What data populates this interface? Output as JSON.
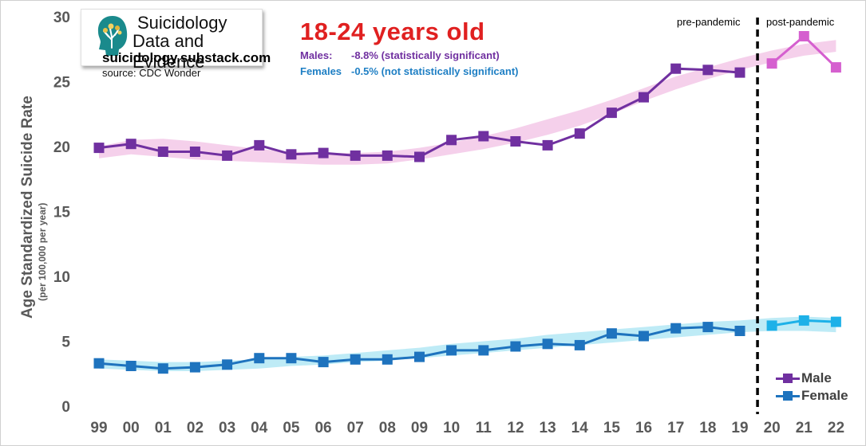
{
  "logo": {
    "line1": "Suicidology",
    "line2": "Data and Evidence",
    "url": "suicidology.substack.com",
    "icon": "head-tree-icon"
  },
  "source": "source: CDC Wonder",
  "title": "18-24 years old",
  "annotations": {
    "males_label": "Males:",
    "males_value": "-8.8% (statistically significant)",
    "females_label": "Females",
    "females_value": "-0.5% (not statistically significant)"
  },
  "regions": {
    "pre": "pre-pandemic",
    "post": "post-pandemic"
  },
  "colors": {
    "male": "#7030a0",
    "male_post": "#d55fcf",
    "male_band": "#f3c8e8",
    "female": "#1e73be",
    "female_post": "#1eb1e8",
    "female_band": "#b3e8f5",
    "axis_text": "#595959"
  },
  "chart_data": {
    "type": "line",
    "title": "18-24 years old",
    "ylabel": "Age Standardized Suicide Rate",
    "ylabel_sub": "(per 100,000 per year)",
    "xlabel": "",
    "categories": [
      "99",
      "00",
      "01",
      "02",
      "03",
      "04",
      "05",
      "06",
      "07",
      "08",
      "09",
      "10",
      "11",
      "12",
      "13",
      "14",
      "15",
      "16",
      "17",
      "18",
      "19",
      "20",
      "21",
      "22"
    ],
    "ylim": [
      0,
      30
    ],
    "yticks": [
      0,
      5,
      10,
      15,
      20,
      25,
      30
    ],
    "pandemic_divider_after": "19",
    "series": [
      {
        "name": "Male",
        "values": [
          19.9,
          20.2,
          19.6,
          19.6,
          19.3,
          20.1,
          19.4,
          19.5,
          19.3,
          19.3,
          19.2,
          20.5,
          20.8,
          20.4,
          20.1,
          21.0,
          22.6,
          23.8,
          26.0,
          25.9,
          25.7,
          26.4,
          28.5,
          26.1
        ],
        "band_lower": [
          19.1,
          19.4,
          19.2,
          19.0,
          18.9,
          18.8,
          18.7,
          18.6,
          18.6,
          18.7,
          19.0,
          19.4,
          19.8,
          20.3,
          20.9,
          21.6,
          22.5,
          23.5,
          24.4,
          25.2,
          25.9,
          26.5,
          27.0,
          27.3
        ],
        "band_upper": [
          20.0,
          20.5,
          20.6,
          20.4,
          20.1,
          19.8,
          19.6,
          19.5,
          19.5,
          19.6,
          19.9,
          20.3,
          20.8,
          21.4,
          22.1,
          22.8,
          23.6,
          24.5,
          25.4,
          26.1,
          26.8,
          27.4,
          27.9,
          28.2
        ]
      },
      {
        "name": "Female",
        "values": [
          3.3,
          3.1,
          2.9,
          3.0,
          3.2,
          3.7,
          3.7,
          3.4,
          3.6,
          3.6,
          3.8,
          4.3,
          4.3,
          4.6,
          4.8,
          4.7,
          5.6,
          5.4,
          6.0,
          6.1,
          5.8,
          6.2,
          6.6,
          6.5
        ],
        "band_lower": [
          2.9,
          2.8,
          2.7,
          2.7,
          2.8,
          2.9,
          3.1,
          3.2,
          3.4,
          3.5,
          3.7,
          3.9,
          4.1,
          4.3,
          4.5,
          4.7,
          4.9,
          5.1,
          5.3,
          5.5,
          5.7,
          5.8,
          5.8,
          5.7
        ],
        "band_upper": [
          3.6,
          3.5,
          3.4,
          3.4,
          3.5,
          3.6,
          3.8,
          3.9,
          4.1,
          4.3,
          4.5,
          4.8,
          5.0,
          5.2,
          5.5,
          5.7,
          5.9,
          6.1,
          6.3,
          6.5,
          6.6,
          6.8,
          6.9,
          6.8
        ]
      }
    ],
    "legend": [
      "Male",
      "Female"
    ],
    "legend_placement": "bottom-right",
    "grid": false
  }
}
